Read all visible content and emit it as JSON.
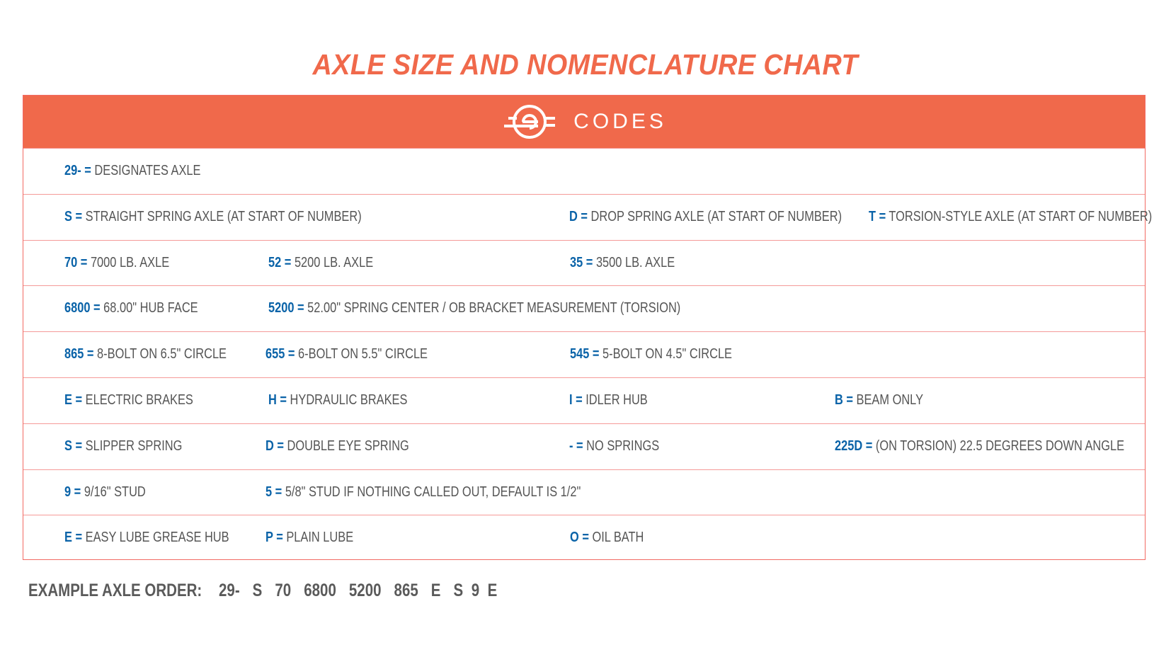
{
  "title": "AXLE SIZE AND NOMENCLATURE CHART",
  "header": {
    "label": "CODES",
    "icon": "axle-hub-icon"
  },
  "colors": {
    "accent": "#F0694B",
    "code": "#0A63A8",
    "text": "#555555",
    "border": "#F26A63"
  },
  "rows": [
    [
      {
        "code": "29-  =",
        "desc": "DESIGNATES AXLE"
      }
    ],
    [
      {
        "code": "S =",
        "desc": "STRAIGHT  SPRING AXLE (AT START OF NUMBER)"
      },
      {
        "code": "D =",
        "desc": "DROP SPRING AXLE (AT START OF NUMBER)"
      },
      {
        "code": "T =",
        "desc": "TORSION-STYLE AXLE (AT START OF NUMBER)"
      }
    ],
    [
      {
        "code": "70 =",
        "desc": "7000 LB. AXLE"
      },
      {
        "code": "52 =",
        "desc": "5200 LB. AXLE"
      },
      {
        "code": "35 =",
        "desc": "3500 LB. AXLE"
      }
    ],
    [
      {
        "code": "6800 =",
        "desc": "68.00\" HUB FACE"
      },
      {
        "code": "5200 =",
        "desc": "52.00\" SPRING CENTER /  OB BRACKET MEASUREMENT (TORSION)"
      }
    ],
    [
      {
        "code": "865 =",
        "desc": "8-BOLT ON 6.5\" CIRCLE"
      },
      {
        "code": "655 =",
        "desc": "6-BOLT ON 5.5\" CIRCLE"
      },
      {
        "code": "545 =",
        "desc": "5-BOLT ON 4.5\" CIRCLE"
      }
    ],
    [
      {
        "code": "E =",
        "desc": "ELECTRIC BRAKES"
      },
      {
        "code": "H =",
        "desc": "HYDRAULIC BRAKES"
      },
      {
        "code": "I =",
        "desc": "IDLER HUB"
      },
      {
        "code": "B =",
        "desc": "BEAM ONLY"
      }
    ],
    [
      {
        "code": "S =",
        "desc": "SLIPPER SPRING"
      },
      {
        "code": "D =",
        "desc": "DOUBLE EYE SPRING"
      },
      {
        "code": "- =",
        "desc": "NO SPRINGS"
      },
      {
        "code": "225D =",
        "desc": "(ON TORSION) 22.5 DEGREES DOWN ANGLE"
      }
    ],
    [
      {
        "code": "9 =",
        "desc": "9/16\" STUD"
      },
      {
        "code": "5 =",
        "desc": "5/8\" STUD IF NOTHING CALLED OUT, DEFAULT IS 1/2\""
      }
    ],
    [
      {
        "code": "E =",
        "desc": "EASY LUBE GREASE HUB"
      },
      {
        "code": "P =",
        "desc": "PLAIN LUBE"
      },
      {
        "code": "O =",
        "desc": "OIL BATH"
      }
    ]
  ],
  "example": {
    "label": "EXAMPLE AXLE ORDER:",
    "parts": [
      "29-",
      "S",
      "70",
      "6800",
      "5200",
      "865",
      "E",
      "S",
      "9",
      "E"
    ]
  }
}
